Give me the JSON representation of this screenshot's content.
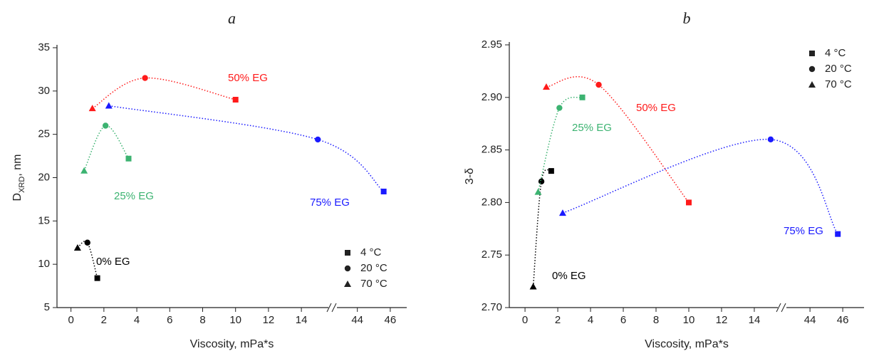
{
  "chart_data": [
    {
      "type": "scatter",
      "title": "a",
      "xlabel": "Viscosity, mPa*s",
      "ylabel": {
        "main": "D",
        "sub": "XRD",
        "rest": ", nm"
      },
      "xlim": [
        [
          -0.85,
          15.9
        ],
        [
          42.5,
          47
        ]
      ],
      "xticks": [
        0,
        2,
        4,
        6,
        8,
        10,
        12,
        14,
        44,
        46
      ],
      "ylim": [
        5,
        35
      ],
      "yticks": [
        5,
        10,
        15,
        20,
        25,
        30,
        35
      ],
      "legend_position": "lower right",
      "legend": [
        {
          "label": "4 °C",
          "marker": "square"
        },
        {
          "label": "20 °C",
          "marker": "circle"
        },
        {
          "label": "70 °C",
          "marker": "triangle"
        }
      ],
      "series": [
        {
          "name": "0% EG",
          "color": "#000000",
          "markers": [
            "triangle",
            "circle",
            "square"
          ],
          "x": [
            0.4,
            1.0,
            1.6
          ],
          "values": [
            11.9,
            12.5,
            8.4
          ]
        },
        {
          "name": "25% EG",
          "color": "#3cb371",
          "markers": [
            "triangle",
            "circle",
            "square"
          ],
          "x": [
            0.8,
            2.1,
            3.5
          ],
          "values": [
            20.8,
            26.0,
            22.2
          ]
        },
        {
          "name": "50% EG",
          "color": "#ff1a1a",
          "markers": [
            "triangle",
            "circle",
            "square"
          ],
          "x": [
            1.3,
            4.5,
            10
          ],
          "values": [
            28.0,
            31.5,
            29.0
          ]
        },
        {
          "name": "75% EG",
          "color": "#1a1aff",
          "markers": [
            "triangle",
            "circle",
            "square"
          ],
          "x": [
            2.3,
            15,
            45.6
          ],
          "values": [
            28.3,
            24.4,
            18.4
          ]
        }
      ]
    },
    {
      "type": "scatter",
      "title": "b",
      "xlabel": "Viscosity, mPa*s",
      "ylabel": {
        "main": "3-δ"
      },
      "xlim": [
        [
          -0.96,
          15.7
        ],
        [
          42.3,
          47.3
        ]
      ],
      "xticks": [
        0,
        2,
        4,
        6,
        8,
        10,
        12,
        14,
        44,
        46
      ],
      "ylim": [
        2.7,
        2.95
      ],
      "yticks": [
        {
          "value": 2.7,
          "label": "2.70"
        },
        2.75,
        {
          "value": 2.8,
          "label": "2.80"
        },
        2.85,
        {
          "value": 2.9,
          "label": "2.90"
        },
        2.95
      ],
      "legend_position": "upper right",
      "legend": [
        {
          "label": "4 °C",
          "marker": "square"
        },
        {
          "label": "20 °C",
          "marker": "circle"
        },
        {
          "label": "70 °C",
          "marker": "triangle"
        }
      ],
      "series": [
        {
          "name": "0% EG",
          "color": "#000000",
          "markers": [
            "triangle",
            "circle",
            "square"
          ],
          "x": [
            0.5,
            1.0,
            1.6
          ],
          "values": [
            2.72,
            2.82,
            2.83
          ]
        },
        {
          "name": "25% EG",
          "color": "#3cb371",
          "markers": [
            "triangle",
            "circle",
            "square"
          ],
          "x": [
            0.8,
            2.1,
            3.5
          ],
          "values": [
            2.81,
            2.89,
            2.9
          ]
        },
        {
          "name": "50% EG",
          "color": "#ff1a1a",
          "markers": [
            "triangle",
            "circle",
            "square"
          ],
          "x": [
            1.3,
            4.5,
            10
          ],
          "values": [
            2.91,
            2.912,
            2.8
          ]
        },
        {
          "name": "75% EG",
          "color": "#1a1aff",
          "markers": [
            "triangle",
            "circle",
            "square"
          ],
          "x": [
            2.3,
            15,
            45.7
          ],
          "values": [
            2.79,
            2.86,
            2.77
          ]
        }
      ]
    }
  ]
}
